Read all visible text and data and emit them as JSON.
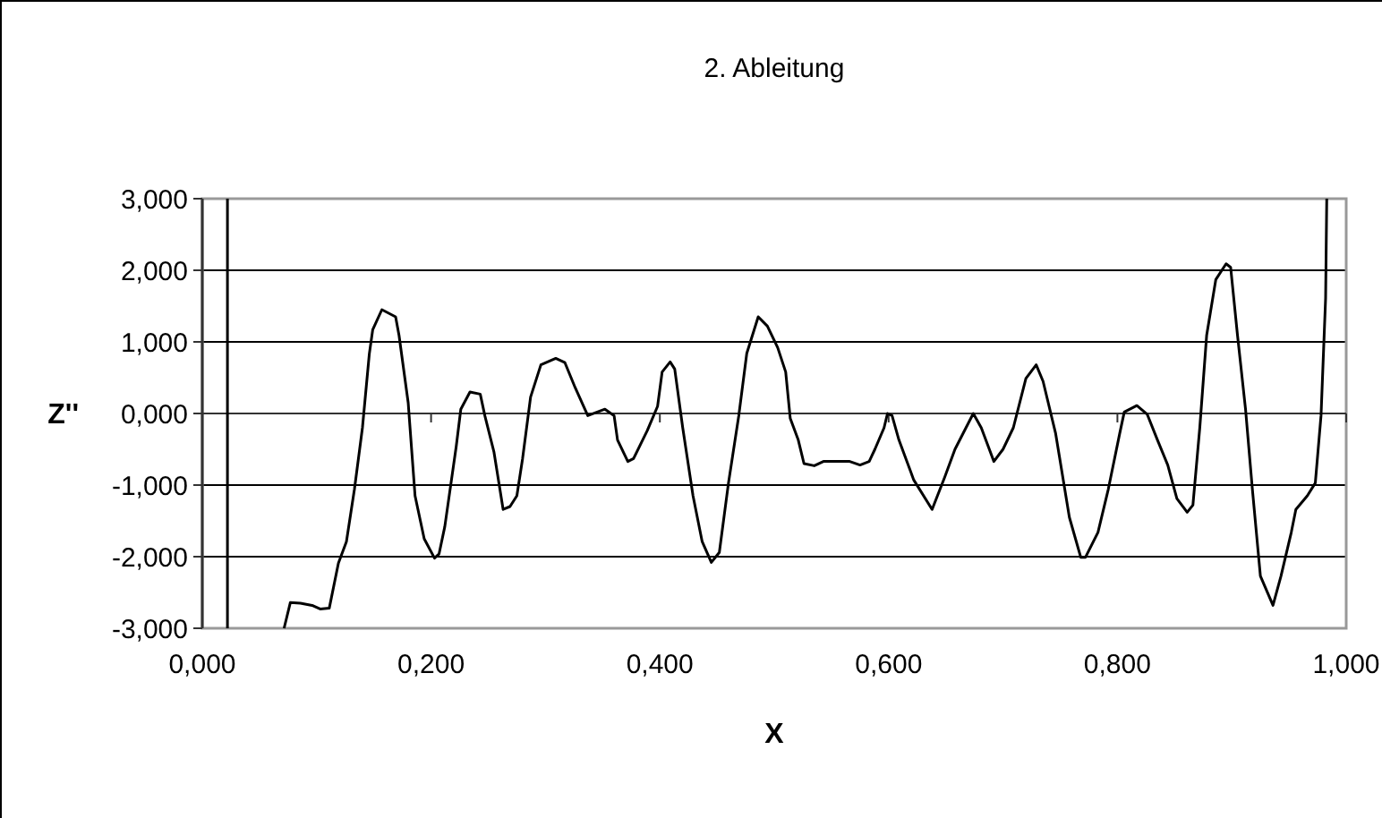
{
  "chart_data": {
    "type": "line",
    "title": "2. Ableitung",
    "xlabel": "X",
    "ylabel": "Z''",
    "xlim": [
      0,
      1
    ],
    "xticks": [
      {
        "value": 0,
        "label": "0,000"
      },
      {
        "value": 0.2,
        "label": "0,200"
      },
      {
        "value": 0.4,
        "label": "0,400"
      },
      {
        "value": 0.6,
        "label": "0,600"
      },
      {
        "value": 0.8,
        "label": "0,800"
      },
      {
        "value": 1,
        "label": "1,000"
      }
    ],
    "ylim": [
      -3,
      3
    ],
    "yticks": [
      {
        "value": -3,
        "label": "-3,000"
      },
      {
        "value": -2,
        "label": "-2,000"
      },
      {
        "value": -1,
        "label": "-1,000"
      },
      {
        "value": 0,
        "label": "0,000"
      },
      {
        "value": 1,
        "label": "1,000"
      },
      {
        "value": 2,
        "label": "2,000"
      },
      {
        "value": 3,
        "label": "3,000"
      }
    ],
    "grid": "y",
    "marker": "none",
    "line_style": "solid",
    "series": [
      {
        "color": "#000000",
        "x": [
          0.022,
          0.022,
          0.05,
          0.0715,
          0.077,
          0.0858,
          0.096,
          0.103,
          0.111,
          0.119,
          0.126,
          0.133,
          0.14,
          0.146,
          0.149,
          0.157,
          0.169,
          0.172,
          0.18,
          0.186,
          0.194,
          0.203,
          0.207,
          0.212,
          0.222,
          0.226,
          0.234,
          0.243,
          0.247,
          0.255,
          0.263,
          0.269,
          0.275,
          0.28,
          0.287,
          0.296,
          0.309,
          0.317,
          0.326,
          0.337,
          0.352,
          0.36,
          0.363,
          0.372,
          0.377,
          0.389,
          0.398,
          0.402,
          0.409,
          0.413,
          0.42,
          0.429,
          0.437,
          0.445,
          0.452,
          0.46,
          0.469,
          0.476,
          0.486,
          0.494,
          0.503,
          0.51,
          0.514,
          0.521,
          0.526,
          0.535,
          0.543,
          0.566,
          0.575,
          0.583,
          0.588,
          0.596,
          0.599,
          0.603,
          0.609,
          0.622,
          0.638,
          0.649,
          0.658,
          0.674,
          0.681,
          0.692,
          0.7,
          0.709,
          0.72,
          0.729,
          0.735,
          0.746,
          0.758,
          0.768,
          0.772,
          0.783,
          0.792,
          0.802,
          0.806,
          0.817,
          0.826,
          0.835,
          0.844,
          0.852,
          0.861,
          0.866,
          0.872,
          0.878,
          0.886,
          0.895,
          0.899,
          0.905,
          0.912,
          0.918,
          0.925,
          0.936,
          0.943,
          0.952,
          0.956,
          0.966,
          0.973,
          0.978,
          0.982,
          0.983
        ],
        "values": [
          3,
          -3,
          null,
          -3,
          -2.64,
          -2.65,
          -2.68,
          -2.73,
          -2.72,
          -2.09,
          -1.79,
          -1.06,
          -0.2,
          0.83,
          1.17,
          1.45,
          1.35,
          1.09,
          0.15,
          -1.15,
          -1.75,
          -2.02,
          -1.96,
          -1.58,
          -0.46,
          0.06,
          0.3,
          0.27,
          -0.03,
          -0.54,
          -1.34,
          -1.3,
          -1.15,
          -0.63,
          0.23,
          0.68,
          0.77,
          0.71,
          0.36,
          -0.03,
          0.06,
          -0.03,
          -0.37,
          -0.67,
          -0.63,
          -0.24,
          0.1,
          0.58,
          0.72,
          0.62,
          -0.2,
          -1.15,
          -1.79,
          -2.08,
          -1.94,
          -0.97,
          -0.03,
          0.84,
          1.35,
          1.22,
          0.92,
          0.58,
          -0.07,
          -0.37,
          -0.7,
          -0.73,
          -0.67,
          -0.67,
          -0.72,
          -0.67,
          -0.5,
          -0.2,
          0,
          -0.03,
          -0.37,
          -0.93,
          -1.34,
          -0.89,
          -0.5,
          0,
          -0.2,
          -0.67,
          -0.5,
          -0.2,
          0.49,
          0.68,
          0.45,
          -0.28,
          -1.45,
          -2.01,
          -2.01,
          -1.66,
          -1.06,
          -0.28,
          0.02,
          0.11,
          -0.01,
          -0.37,
          -0.72,
          -1.19,
          -1.38,
          -1.28,
          -0.2,
          1.09,
          1.87,
          2.09,
          2.04,
          1.09,
          0.06,
          -1.06,
          -2.27,
          -2.68,
          -2.27,
          -1.66,
          -1.34,
          -1.15,
          -0.97,
          -0.03,
          1.61,
          3
        ]
      }
    ]
  }
}
